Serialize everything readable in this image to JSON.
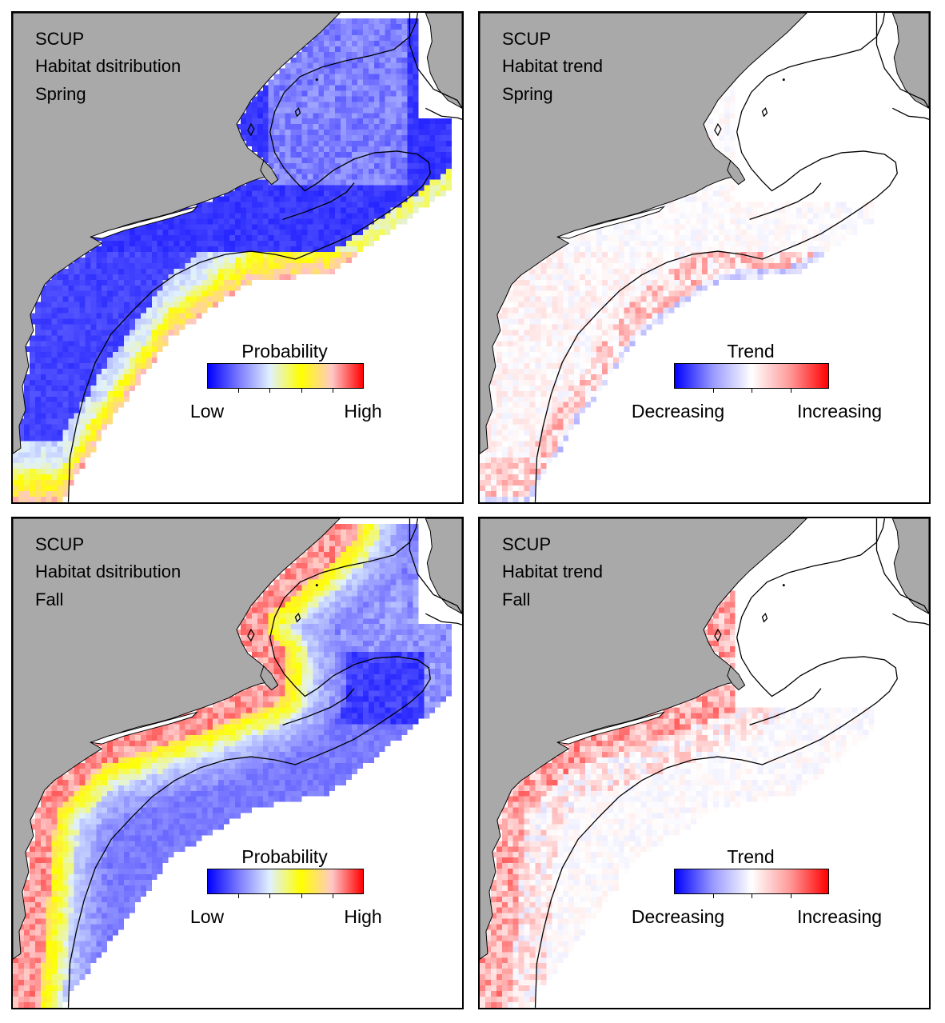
{
  "panels": [
    {
      "line1": "SCUP",
      "line2": "Habitat dsitribution",
      "line3": "Spring",
      "type": "probability",
      "season": "spring"
    },
    {
      "line1": "SCUP",
      "line2": "Habitat trend",
      "line3": "Spring",
      "type": "trend",
      "season": "spring"
    },
    {
      "line1": "SCUP",
      "line2": "Habitat dsitribution",
      "line3": "Fall",
      "type": "probability",
      "season": "fall"
    },
    {
      "line1": "SCUP",
      "line2": "Habitat trend",
      "line3": "Fall",
      "type": "trend",
      "season": "fall"
    }
  ],
  "legends": {
    "probability": {
      "title": "Probability",
      "low": "Low",
      "high": "High",
      "colors": [
        "#0000ff",
        "#7b7bff",
        "#e0f0ff",
        "#ffff00",
        "#ffc8c8",
        "#ff0000"
      ]
    },
    "trend": {
      "title": "Trend",
      "low": "Decreasing",
      "high": "Increasing",
      "colors": [
        "#0000ff",
        "#9a9aff",
        "#ffffff",
        "#ff9a9a",
        "#ff0000"
      ]
    }
  },
  "colors": {
    "land": "#a9a9a9",
    "water": "#ffffff",
    "contour": "#000000"
  }
}
